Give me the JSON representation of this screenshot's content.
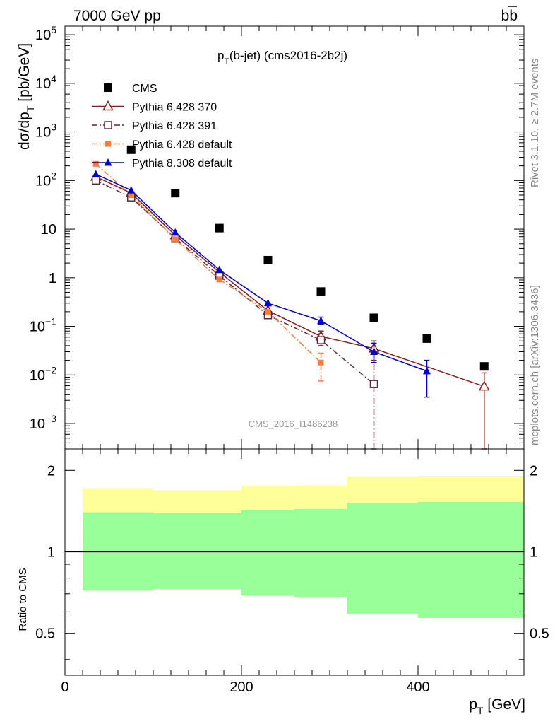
{
  "header": {
    "left": "7000 GeV pp",
    "right": "b",
    "right_bar": "b"
  },
  "side": {
    "rivet": "Rivet 3.1.10, ≥ 2.7M events",
    "mcplots": "mcplots.cern.ch [arXiv:1306.3436]"
  },
  "chart_data": [
    {
      "type": "scatter",
      "title": {
        "p": "p",
        "sub": "T",
        "rest": "(b-jet) (cms2016-2b2j)"
      },
      "watermark": "CMS_2016_I1486238",
      "ylabel": {
        "main": "dσ/dp",
        "sub": "T",
        "unit": " [pb/GeV]"
      },
      "yscale": "log",
      "ylim": [
        0.0003,
        150000
      ],
      "xlim": [
        0,
        520
      ],
      "ytick_labels": [
        {
          "value": 0.001,
          "base": "10",
          "exp": "−3"
        },
        {
          "value": 0.01,
          "base": "10",
          "exp": "−2"
        },
        {
          "value": 0.1,
          "base": "10",
          "exp": "−1"
        },
        {
          "value": 1,
          "base": "1",
          "exp": ""
        },
        {
          "value": 10,
          "base": "10",
          "exp": ""
        },
        {
          "value": 100,
          "base": "10",
          "exp": "2"
        },
        {
          "value": 1000,
          "base": "10",
          "exp": "3"
        },
        {
          "value": 10000,
          "base": "10",
          "exp": "4"
        },
        {
          "value": 100000,
          "base": "10",
          "exp": "5"
        }
      ],
      "series": [
        {
          "name": "CMS",
          "color": "#000000",
          "marker": "square",
          "line": "none",
          "x": [
            75,
            125,
            175,
            230,
            290,
            350,
            410,
            475
          ],
          "y": [
            430,
            55,
            10.5,
            2.3,
            0.52,
            0.15,
            0.056,
            0.015
          ]
        },
        {
          "name": "Pythia 6.428 370",
          "color": "#8b1a1a",
          "marker": "open-triangle",
          "line": "solid",
          "x": [
            35,
            75,
            125,
            175,
            230,
            290,
            350,
            475
          ],
          "y": [
            120,
            55,
            7.5,
            1.3,
            0.21,
            0.062,
            0.035,
            0.0058
          ],
          "yerr": [
            [
              null,
              null
            ],
            [
              null,
              null
            ],
            [
              null,
              null
            ],
            [
              null,
              null
            ],
            [
              null,
              null
            ],
            [
              0.05,
              0.08
            ],
            [
              0.02,
              0.05
            ],
            [
              0.0003,
              0.011
            ]
          ]
        },
        {
          "name": "Pythia 6.428 391",
          "color": "#5a2a3a",
          "marker": "open-square",
          "line": "dash-dot",
          "x": [
            35,
            75,
            125,
            175,
            230,
            290,
            350
          ],
          "y": [
            100,
            45,
            6.5,
            1.1,
            0.17,
            0.052,
            0.0065
          ],
          "yerr": [
            [
              null,
              null
            ],
            [
              null,
              null
            ],
            [
              null,
              null
            ],
            [
              null,
              null
            ],
            [
              null,
              null
            ],
            [
              0.04,
              0.07
            ],
            [
              0.0003,
              0.05
            ]
          ]
        },
        {
          "name": "Pythia 6.428 default",
          "color": "#f47c3c",
          "marker": "filled-square",
          "line": "dash-dot",
          "x": [
            35,
            75,
            125,
            175,
            230,
            290
          ],
          "y": [
            220,
            50,
            6.2,
            0.92,
            0.2,
            0.018
          ],
          "yerr": [
            [
              null,
              null
            ],
            [
              null,
              null
            ],
            [
              null,
              null
            ],
            [
              null,
              null
            ],
            [
              null,
              null
            ],
            [
              0.0075,
              0.028
            ]
          ]
        },
        {
          "name": "Pythia 8.308 default",
          "color": "#0000cc",
          "marker": "filled-triangle",
          "line": "solid",
          "x": [
            35,
            75,
            125,
            175,
            230,
            290,
            350,
            410
          ],
          "y": [
            135,
            63,
            8.5,
            1.45,
            0.3,
            0.13,
            0.03,
            0.012
          ],
          "yerr": [
            [
              null,
              null
            ],
            [
              null,
              null
            ],
            [
              null,
              null
            ],
            [
              null,
              null
            ],
            [
              null,
              null
            ],
            [
              0.11,
              0.155
            ],
            [
              0.018,
              0.045
            ],
            [
              0.0035,
              0.02
            ]
          ]
        }
      ]
    },
    {
      "type": "area",
      "ylabel": "Ratio to CMS",
      "xlabel": {
        "p": "p",
        "sub": "T",
        "unit": " [GeV]"
      },
      "xlim": [
        0,
        520
      ],
      "ylim": [
        0.35,
        2.4
      ],
      "ytick_labels": [
        0.5,
        1,
        2
      ],
      "ytick_text": [
        "0.5",
        "1",
        "2"
      ],
      "xtick_labels": [
        0,
        200,
        400
      ],
      "xtick_text": [
        "0",
        "200",
        "400"
      ],
      "reference": 1,
      "bands": {
        "edges": [
          20,
          100,
          200,
          260,
          320,
          400,
          520
        ],
        "yellow": [
          [
            0.72,
            1.72
          ],
          [
            0.73,
            1.69
          ],
          [
            0.69,
            1.75
          ],
          [
            0.68,
            1.76
          ],
          [
            0.59,
            1.9
          ],
          [
            0.57,
            1.91
          ],
          [
            0.56,
            1.92
          ]
        ],
        "green": [
          [
            0.72,
            1.4
          ],
          [
            0.73,
            1.39
          ],
          [
            0.69,
            1.43
          ],
          [
            0.68,
            1.44
          ],
          [
            0.59,
            1.52
          ],
          [
            0.57,
            1.53
          ],
          [
            0.56,
            1.54
          ]
        ]
      },
      "band_colors": {
        "outer": "#ffff99",
        "inner": "#99ff99"
      }
    }
  ]
}
